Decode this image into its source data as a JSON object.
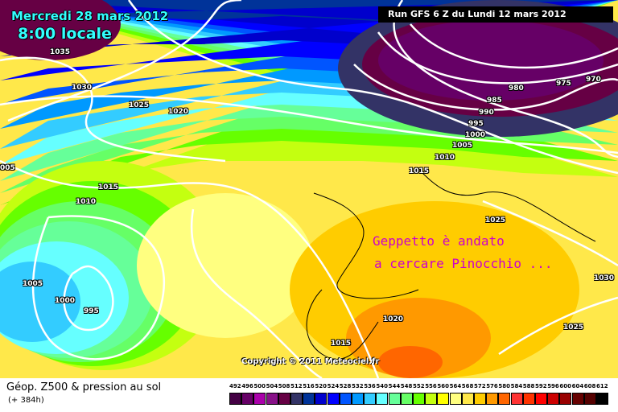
{
  "header": {
    "date": "Mercredi 28 mars 2012",
    "time": "8:00 locale",
    "run": "Run GFS 6 Z du Lundi 12 mars 2012"
  },
  "map": {
    "isobar_labels": [
      "1035",
      "1030",
      "1025",
      "1020",
      "005",
      "1015",
      "1010",
      "1005",
      "1000",
      "995",
      "1015",
      "1010",
      "1005",
      "1000",
      "995",
      "990",
      "985",
      "980",
      "975",
      "970",
      "1025",
      "1030",
      "1025",
      "1020",
      "1015"
    ],
    "annotation_line1": "Geppetto è andato",
    "annotation_line2": "a cercare Pinocchio ...",
    "copyright": "Copyright © 2011 Meteociel.fr"
  },
  "footer": {
    "title": "Géop. Z500 & pression au sol",
    "subtitle": "(+ 384h)"
  },
  "legend": {
    "labels": [
      "492",
      "496",
      "500",
      "504",
      "508",
      "512",
      "516",
      "520",
      "524",
      "528",
      "532",
      "536",
      "540",
      "544",
      "548",
      "552",
      "556",
      "560",
      "564",
      "568",
      "572",
      "576",
      "580",
      "584",
      "588",
      "592",
      "596",
      "600",
      "604",
      "608",
      "612"
    ],
    "colors": [
      "#440044",
      "#660066",
      "#aa00aa",
      "#881188",
      "#660044",
      "#333366",
      "#003399",
      "#0000cc",
      "#0000ff",
      "#0055ff",
      "#0099ff",
      "#33ccff",
      "#66ffff",
      "#66ff99",
      "#66ff66",
      "#66ff00",
      "#c4ff10",
      "#ffff00",
      "#ffff80",
      "#ffe84a",
      "#ffcc00",
      "#ff9900",
      "#ff6600",
      "#ff3333",
      "#ff3300",
      "#ff0000",
      "#cc0000",
      "#990000",
      "#660000",
      "#550000",
      "#000000"
    ]
  }
}
